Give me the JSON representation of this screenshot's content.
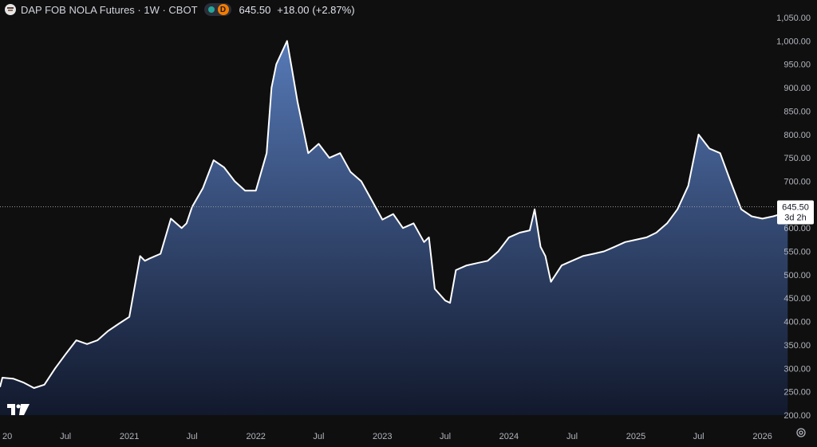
{
  "header": {
    "title": "DAP FOB NOLA Futures · 1W · CBOT",
    "status_badge": "D",
    "last": "645.50",
    "change": "+18.00",
    "change_pct": "(+2.87%)"
  },
  "price_tag": {
    "value": "645.50",
    "countdown": "3d 2h"
  },
  "colors": {
    "line": "#ffffff",
    "fill_top": "#5a7fc0",
    "fill_bottom": "#121a30",
    "background": "#0f0f0f",
    "axis_text": "#b2b5be"
  },
  "chart_data": {
    "type": "area",
    "title": "DAP FOB NOLA Futures",
    "xlabel": "",
    "ylabel": "",
    "ylim": [
      190,
      1060
    ],
    "grid": false,
    "y_ticks": [
      "200.00",
      "250.00",
      "300.00",
      "350.00",
      "400.00",
      "450.00",
      "500.00",
      "550.00",
      "600.00",
      "650.00",
      "700.00",
      "750.00",
      "800.00",
      "850.00",
      "900.00",
      "950.00",
      "1,000.00",
      "1,050.00"
    ],
    "x_ticks": [
      {
        "label": "20",
        "x": "2020-01-01"
      },
      {
        "label": "Jul",
        "x": "2020-07-01"
      },
      {
        "label": "2021",
        "x": "2021-01-01"
      },
      {
        "label": "Jul",
        "x": "2021-07-01"
      },
      {
        "label": "2022",
        "x": "2022-01-01"
      },
      {
        "label": "Jul",
        "x": "2022-07-01"
      },
      {
        "label": "2023",
        "x": "2023-01-01"
      },
      {
        "label": "Jul",
        "x": "2023-07-01"
      },
      {
        "label": "2024",
        "x": "2024-01-01"
      },
      {
        "label": "Jul",
        "x": "2024-07-01"
      },
      {
        "label": "2025",
        "x": "2025-01-01"
      },
      {
        "label": "Jul",
        "x": "2025-07-01"
      },
      {
        "label": "2026",
        "x": "2026-01-01"
      }
    ],
    "x_range": [
      "2019-12-25",
      "2026-05-20"
    ],
    "x": [
      "2019-12-25",
      "2020-01-01",
      "2020-02-01",
      "2020-03-01",
      "2020-04-01",
      "2020-05-01",
      "2020-06-01",
      "2020-07-01",
      "2020-08-01",
      "2020-09-01",
      "2020-10-01",
      "2020-11-01",
      "2020-12-01",
      "2021-01-01",
      "2021-02-01",
      "2021-02-15",
      "2021-03-01",
      "2021-04-01",
      "2021-05-01",
      "2021-06-01",
      "2021-06-15",
      "2021-07-01",
      "2021-08-01",
      "2021-09-01",
      "2021-10-01",
      "2021-11-01",
      "2021-12-01",
      "2022-01-01",
      "2022-02-01",
      "2022-02-15",
      "2022-03-01",
      "2022-04-01",
      "2022-04-15",
      "2022-05-01",
      "2022-06-01",
      "2022-07-01",
      "2022-08-01",
      "2022-09-01",
      "2022-10-01",
      "2022-11-01",
      "2022-12-01",
      "2023-01-01",
      "2023-02-01",
      "2023-03-01",
      "2023-04-01",
      "2023-05-01",
      "2023-05-15",
      "2023-06-01",
      "2023-07-01",
      "2023-07-15",
      "2023-08-01",
      "2023-09-01",
      "2023-10-01",
      "2023-11-01",
      "2023-12-01",
      "2024-01-01",
      "2024-02-01",
      "2024-03-01",
      "2024-03-15",
      "2024-04-01",
      "2024-04-15",
      "2024-05-01",
      "2024-06-01",
      "2024-07-01",
      "2024-08-01",
      "2024-09-01",
      "2024-10-01",
      "2024-11-01",
      "2024-12-01",
      "2025-01-01",
      "2025-02-01",
      "2025-03-01",
      "2025-04-01",
      "2025-05-01",
      "2025-06-01",
      "2025-07-01",
      "2025-08-01",
      "2025-09-01",
      "2025-10-01",
      "2025-11-01",
      "2025-12-01",
      "2026-01-01",
      "2026-02-01",
      "2026-02-15",
      "2026-03-01",
      "2026-03-15"
    ],
    "series": [
      {
        "values": [
          260,
          280,
          278,
          270,
          258,
          265,
          300,
          330,
          360,
          352,
          360,
          380,
          395,
          410,
          540,
          530,
          535,
          545,
          620,
          600,
          610,
          645,
          685,
          745,
          730,
          700,
          680,
          680,
          760,
          900,
          950,
          1000,
          940,
          870,
          760,
          780,
          750,
          760,
          720,
          700,
          660,
          618,
          630,
          600,
          610,
          570,
          580,
          470,
          445,
          440,
          510,
          520,
          525,
          530,
          550,
          580,
          590,
          595,
          640,
          560,
          540,
          485,
          520,
          530,
          540,
          545,
          550,
          560,
          570,
          575,
          580,
          590,
          610,
          640,
          690,
          800,
          770,
          760,
          700,
          640,
          625,
          620,
          625,
          628,
          630,
          645.5
        ]
      }
    ]
  }
}
